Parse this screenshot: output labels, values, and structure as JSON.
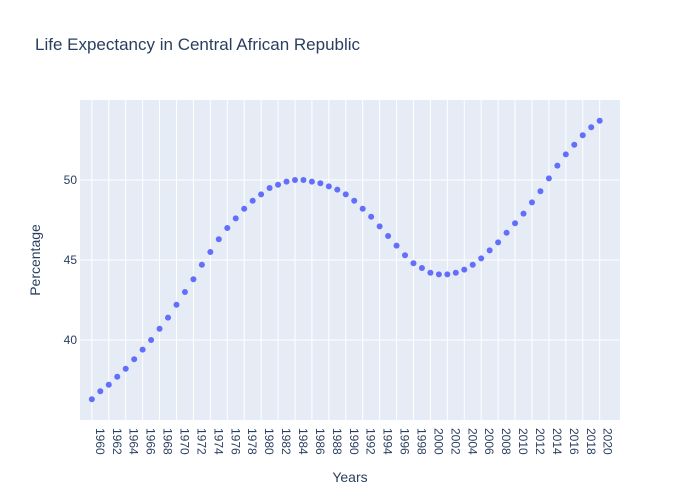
{
  "chart_data": {
    "type": "scatter",
    "title": "Life Expectancy in Central African Republic",
    "xlabel": "Years",
    "ylabel": "Percentage",
    "xlim": [
      1958.6,
      2022.4
    ],
    "ylim": [
      35,
      55
    ],
    "x_ticks": [
      1960,
      1962,
      1964,
      1966,
      1968,
      1970,
      1972,
      1974,
      1976,
      1978,
      1980,
      1982,
      1984,
      1986,
      1988,
      1990,
      1992,
      1994,
      1996,
      1998,
      2000,
      2002,
      2004,
      2006,
      2008,
      2010,
      2012,
      2014,
      2016,
      2018,
      2020
    ],
    "y_ticks": [
      40,
      45,
      50
    ],
    "grid": true,
    "legend": "none",
    "marker_color": "#636efa",
    "background_color": "#e5ecf6",
    "x": [
      1960,
      1961,
      1962,
      1963,
      1964,
      1965,
      1966,
      1967,
      1968,
      1969,
      1970,
      1971,
      1972,
      1973,
      1974,
      1975,
      1976,
      1977,
      1978,
      1979,
      1980,
      1981,
      1982,
      1983,
      1984,
      1985,
      1986,
      1987,
      1988,
      1989,
      1990,
      1991,
      1992,
      1993,
      1994,
      1995,
      1996,
      1997,
      1998,
      1999,
      2000,
      2001,
      2002,
      2003,
      2004,
      2005,
      2006,
      2007,
      2008,
      2009,
      2010,
      2011,
      2012,
      2013,
      2014,
      2015,
      2016,
      2017,
      2018,
      2019,
      2020
    ],
    "y": [
      36.3,
      36.8,
      37.2,
      37.7,
      38.2,
      38.8,
      39.4,
      40.0,
      40.7,
      41.4,
      42.2,
      43.0,
      43.8,
      44.7,
      45.5,
      46.3,
      47.0,
      47.6,
      48.2,
      48.7,
      49.1,
      49.5,
      49.7,
      49.9,
      50.0,
      50.0,
      49.9,
      49.8,
      49.6,
      49.4,
      49.1,
      48.7,
      48.2,
      47.7,
      47.1,
      46.5,
      45.9,
      45.3,
      44.8,
      44.5,
      44.2,
      44.1,
      44.1,
      44.2,
      44.4,
      44.7,
      45.1,
      45.6,
      46.1,
      46.7,
      47.3,
      47.9,
      48.6,
      49.3,
      50.1,
      50.9,
      51.6,
      52.2,
      52.8,
      53.3,
      53.7
    ]
  }
}
